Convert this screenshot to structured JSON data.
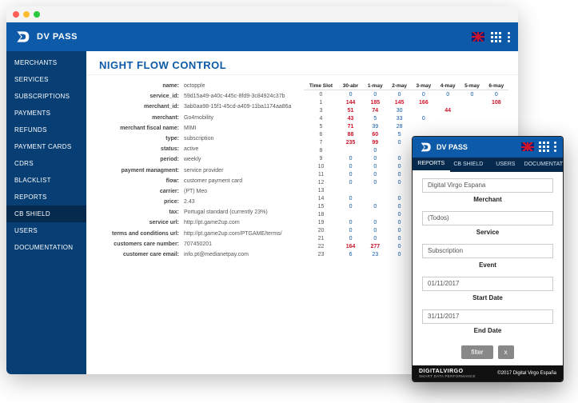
{
  "colors": {
    "brand_primary": "#0d5aa8",
    "brand_dark": "#073e73",
    "brand_darker": "#052a4d",
    "hot": "#cf142b",
    "cold": "#0d5aa8",
    "text": "#333333",
    "background": "#ffffff"
  },
  "topbar": {
    "brand": "DV PASS"
  },
  "sidebar": {
    "items": [
      {
        "label": "MERCHANTS"
      },
      {
        "label": "SERVICES"
      },
      {
        "label": "SUBSCRIPTIONS"
      },
      {
        "label": "PAYMENTS"
      },
      {
        "label": "REFUNDS"
      },
      {
        "label": "PAYMENT CARDS"
      },
      {
        "label": "CDRS"
      },
      {
        "label": "BLACKLIST"
      },
      {
        "label": "REPORTS"
      },
      {
        "label": "CB SHIELD",
        "active": true
      },
      {
        "label": "USERS"
      },
      {
        "label": "DOCUMENTATION"
      }
    ]
  },
  "page": {
    "title": "NIGHT FLOW CONTROL"
  },
  "details": [
    {
      "k": "name:",
      "v": "octopple"
    },
    {
      "k": "service_id:",
      "v": "59d15a49-a40c-445c-8fd9-3c84924c37b"
    },
    {
      "k": "merchant_id:",
      "v": "3ab0aa98-15f1-45cd-a409-11ba1174aa86a"
    },
    {
      "k": "merchant:",
      "v": "Go4mobility"
    },
    {
      "k": "merchant fiscal name:",
      "v": "MIMI"
    },
    {
      "k": "type:",
      "v": "subscription"
    },
    {
      "k": "status:",
      "v": "active"
    },
    {
      "k": "period:",
      "v": "weekly"
    },
    {
      "k": "payment managment:",
      "v": "service provider"
    },
    {
      "k": "flow:",
      "v": "customer payment card"
    },
    {
      "k": "carrier:",
      "v": "(PT) Meo"
    },
    {
      "k": "price:",
      "v": "2.43"
    },
    {
      "k": "tax:",
      "v": "Portugal standard (currently 23%)"
    },
    {
      "k": "service url:",
      "v": "http://pt.game2up.com"
    },
    {
      "k": "terms and conditions url:",
      "v": "http://pt.game2up.com/PTGAME/terms/"
    },
    {
      "k": "customers care number:",
      "v": "707450201"
    },
    {
      "k": "customer care email:",
      "v": "info.pt@medianetpay.com"
    }
  ],
  "table": {
    "headers": [
      "Time Slot",
      "30-abr",
      "1-may",
      "2-may",
      "3-may",
      "4-may",
      "5-may",
      "6-may"
    ],
    "rows": [
      [
        "0",
        "0",
        "0",
        "0",
        "0",
        "0",
        "0",
        "0"
      ],
      [
        "1",
        "144",
        "185",
        "145",
        "166",
        "",
        "",
        "108"
      ],
      [
        "3",
        "51",
        "74",
        "30",
        "",
        "44",
        "",
        ""
      ],
      [
        "4",
        "43",
        "5",
        "33",
        "0",
        "",
        "",
        ""
      ],
      [
        "5",
        "71",
        "39",
        "28",
        "",
        "",
        "",
        ""
      ],
      [
        "6",
        "88",
        "60",
        "5",
        "",
        "",
        "",
        ""
      ],
      [
        "7",
        "235",
        "99",
        "0",
        "57",
        "",
        "",
        ""
      ],
      [
        "8",
        "",
        "0",
        "",
        "0",
        "",
        "",
        ""
      ],
      [
        "9",
        "0",
        "0",
        "0",
        "",
        "",
        "",
        ""
      ],
      [
        "10",
        "0",
        "0",
        "0",
        "",
        "",
        "",
        ""
      ],
      [
        "11",
        "0",
        "0",
        "0",
        "",
        "",
        "",
        ""
      ],
      [
        "12",
        "0",
        "0",
        "0",
        "",
        "",
        "",
        ""
      ],
      [
        "13",
        "",
        "",
        "",
        "",
        "",
        "",
        ""
      ],
      [
        "14",
        "0",
        "",
        "0",
        "",
        "",
        "",
        ""
      ],
      [
        "15",
        "0",
        "0",
        "0",
        "",
        "",
        "",
        ""
      ],
      [
        "18",
        "",
        "",
        "0",
        "",
        "",
        "",
        ""
      ],
      [
        "19",
        "0",
        "0",
        "0",
        "",
        "",
        "",
        ""
      ],
      [
        "20",
        "0",
        "0",
        "0",
        "0",
        "",
        "",
        ""
      ],
      [
        "21",
        "0",
        "0",
        "0",
        "649",
        "",
        "",
        ""
      ],
      [
        "22",
        "164",
        "277",
        "0",
        "63",
        "",
        "",
        ""
      ],
      [
        "23",
        "6",
        "23",
        "0",
        "",
        "",
        "",
        ""
      ]
    ],
    "hot_threshold": 40
  },
  "mobile": {
    "brand": "DV PASS",
    "tabs": [
      {
        "label": "REPORTS",
        "active": true
      },
      {
        "label": "CB SHIELD"
      },
      {
        "label": "USERS"
      },
      {
        "label": "DOCUMENTAT"
      }
    ],
    "form": {
      "merchant_value": "Digital Virgo Espana",
      "merchant_label": "Merchant",
      "service_value": "(Todos)",
      "service_label": "Service",
      "event_value": "Subscription",
      "event_label": "Event",
      "start_value": "01/11/2017",
      "start_label": "Start Date",
      "end_value": "31/11/2017",
      "end_label": "End Date",
      "filter_btn": "filter",
      "reset_btn": "x"
    },
    "footer": {
      "logo": "DIGITALVIRGO",
      "sub": "SMART DATA PERFORMANCE",
      "copyright": "©2017 Digital Virgo España"
    }
  }
}
